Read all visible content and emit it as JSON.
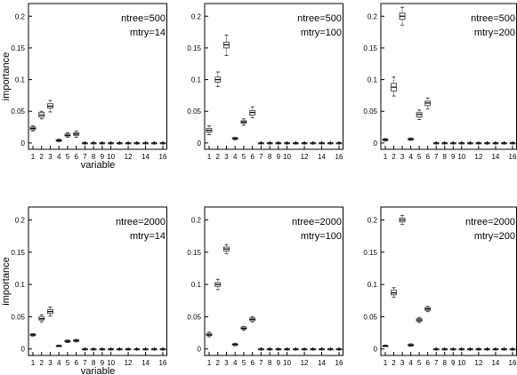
{
  "chart_data": [
    {
      "type": "boxplot",
      "annotations": [
        "ntree=500",
        "mtry=14"
      ],
      "ylabel": "importance",
      "xlabel": "variable",
      "ylim": [
        -0.01,
        0.22
      ],
      "yticks": [
        "0",
        "0.05",
        "0.1",
        "0.15",
        "0.2"
      ],
      "ytick_values": [
        0,
        0.05,
        0.1,
        0.15,
        0.2
      ],
      "xtick_labels": [
        "1",
        "2",
        "3",
        "4",
        "5",
        "6",
        "7",
        "8",
        "9",
        "10",
        "12",
        "14",
        "16"
      ],
      "xtick_values": [
        1,
        2,
        3,
        4,
        5,
        6,
        7,
        8,
        9,
        10,
        12,
        14,
        16
      ],
      "categories": [
        1,
        2,
        3,
        4,
        5,
        6,
        7,
        8,
        9,
        10,
        11,
        12,
        13,
        14,
        15,
        16
      ],
      "boxes": [
        {
          "median": 0.023,
          "q1": 0.021,
          "q3": 0.025,
          "wlo": 0.019,
          "whi": 0.027
        },
        {
          "median": 0.044,
          "q1": 0.041,
          "q3": 0.048,
          "wlo": 0.038,
          "whi": 0.05
        },
        {
          "median": 0.058,
          "q1": 0.055,
          "q3": 0.062,
          "wlo": 0.049,
          "whi": 0.067
        },
        {
          "median": 0.004,
          "q1": 0.003,
          "q3": 0.005,
          "wlo": 0.002,
          "whi": 0.006
        },
        {
          "median": 0.012,
          "q1": 0.011,
          "q3": 0.014,
          "wlo": 0.009,
          "whi": 0.016
        },
        {
          "median": 0.014,
          "q1": 0.012,
          "q3": 0.016,
          "wlo": 0.009,
          "whi": 0.019
        },
        {
          "median": 0,
          "q1": 0,
          "q3": 0,
          "wlo": 0,
          "whi": 0
        },
        {
          "median": 0,
          "q1": 0,
          "q3": 0,
          "wlo": 0,
          "whi": 0
        },
        {
          "median": 0,
          "q1": 0,
          "q3": 0,
          "wlo": 0,
          "whi": 0
        },
        {
          "median": 0,
          "q1": 0,
          "q3": 0,
          "wlo": 0,
          "whi": 0
        },
        {
          "median": 0,
          "q1": 0,
          "q3": 0,
          "wlo": 0,
          "whi": 0
        },
        {
          "median": 0,
          "q1": 0,
          "q3": 0,
          "wlo": 0,
          "whi": 0
        },
        {
          "median": 0,
          "q1": 0,
          "q3": 0,
          "wlo": 0,
          "whi": 0
        },
        {
          "median": 0,
          "q1": 0,
          "q3": 0,
          "wlo": 0,
          "whi": 0
        },
        {
          "median": 0,
          "q1": 0,
          "q3": 0,
          "wlo": 0,
          "whi": 0
        },
        {
          "median": 0,
          "q1": 0,
          "q3": 0,
          "wlo": 0,
          "whi": 0
        }
      ]
    },
    {
      "type": "boxplot",
      "annotations": [
        "ntree=500",
        "mtry=100"
      ],
      "ylabel": "",
      "xlabel": "",
      "ylim": [
        -0.01,
        0.22
      ],
      "yticks": [
        "0",
        "0.05",
        "0.1",
        "0.15",
        "0.2"
      ],
      "ytick_values": [
        0,
        0.05,
        0.1,
        0.15,
        0.2
      ],
      "xtick_labels": [
        "1",
        "2",
        "3",
        "4",
        "5",
        "6",
        "7",
        "8",
        "9",
        "10",
        "12",
        "14",
        "16"
      ],
      "xtick_values": [
        1,
        2,
        3,
        4,
        5,
        6,
        7,
        8,
        9,
        10,
        12,
        14,
        16
      ],
      "categories": [
        1,
        2,
        3,
        4,
        5,
        6,
        7,
        8,
        9,
        10,
        11,
        12,
        13,
        14,
        15,
        16
      ],
      "boxes": [
        {
          "median": 0.02,
          "q1": 0.017,
          "q3": 0.023,
          "wlo": 0.013,
          "whi": 0.027
        },
        {
          "median": 0.1,
          "q1": 0.096,
          "q3": 0.104,
          "wlo": 0.089,
          "whi": 0.112
        },
        {
          "median": 0.155,
          "q1": 0.15,
          "q3": 0.159,
          "wlo": 0.138,
          "whi": 0.17
        },
        {
          "median": 0.007,
          "q1": 0.006,
          "q3": 0.008,
          "wlo": 0.005,
          "whi": 0.009
        },
        {
          "median": 0.033,
          "q1": 0.031,
          "q3": 0.035,
          "wlo": 0.028,
          "whi": 0.038
        },
        {
          "median": 0.048,
          "q1": 0.044,
          "q3": 0.051,
          "wlo": 0.04,
          "whi": 0.057
        },
        {
          "median": 0,
          "q1": 0,
          "q3": 0,
          "wlo": 0,
          "whi": 0
        },
        {
          "median": 0,
          "q1": 0,
          "q3": 0,
          "wlo": 0,
          "whi": 0
        },
        {
          "median": 0,
          "q1": 0,
          "q3": 0,
          "wlo": 0,
          "whi": 0
        },
        {
          "median": 0,
          "q1": 0,
          "q3": 0,
          "wlo": 0,
          "whi": 0
        },
        {
          "median": 0,
          "q1": 0,
          "q3": 0,
          "wlo": 0,
          "whi": 0
        },
        {
          "median": 0,
          "q1": 0,
          "q3": 0,
          "wlo": 0,
          "whi": 0
        },
        {
          "median": 0,
          "q1": 0,
          "q3": 0,
          "wlo": 0,
          "whi": 0
        },
        {
          "median": 0,
          "q1": 0,
          "q3": 0,
          "wlo": 0,
          "whi": 0
        },
        {
          "median": 0,
          "q1": 0,
          "q3": 0,
          "wlo": 0,
          "whi": 0
        },
        {
          "median": 0,
          "q1": 0,
          "q3": 0,
          "wlo": 0,
          "whi": 0
        }
      ]
    },
    {
      "type": "boxplot",
      "annotations": [
        "ntree=500",
        "mtry=200"
      ],
      "ylabel": "",
      "xlabel": "",
      "ylim": [
        -0.01,
        0.22
      ],
      "yticks": [
        "0",
        "0.05",
        "0.1",
        "0.15",
        "0.2"
      ],
      "ytick_values": [
        0,
        0.05,
        0.1,
        0.15,
        0.2
      ],
      "xtick_labels": [
        "1",
        "2",
        "3",
        "4",
        "5",
        "6",
        "7",
        "8",
        "9",
        "10",
        "12",
        "14",
        "16"
      ],
      "xtick_values": [
        1,
        2,
        3,
        4,
        5,
        6,
        7,
        8,
        9,
        10,
        12,
        14,
        16
      ],
      "categories": [
        1,
        2,
        3,
        4,
        5,
        6,
        7,
        8,
        9,
        10,
        11,
        12,
        13,
        14,
        15,
        16
      ],
      "boxes": [
        {
          "median": 0.005,
          "q1": 0.004,
          "q3": 0.006,
          "wlo": 0.003,
          "whi": 0.007
        },
        {
          "median": 0.088,
          "q1": 0.082,
          "q3": 0.094,
          "wlo": 0.074,
          "whi": 0.104
        },
        {
          "median": 0.2,
          "q1": 0.195,
          "q3": 0.205,
          "wlo": 0.186,
          "whi": 0.214
        },
        {
          "median": 0.006,
          "q1": 0.005,
          "q3": 0.007,
          "wlo": 0.004,
          "whi": 0.008
        },
        {
          "median": 0.045,
          "q1": 0.041,
          "q3": 0.048,
          "wlo": 0.037,
          "whi": 0.052
        },
        {
          "median": 0.063,
          "q1": 0.059,
          "q3": 0.066,
          "wlo": 0.054,
          "whi": 0.071
        },
        {
          "median": 0,
          "q1": 0,
          "q3": 0,
          "wlo": 0,
          "whi": 0
        },
        {
          "median": 0,
          "q1": 0,
          "q3": 0,
          "wlo": 0,
          "whi": 0
        },
        {
          "median": 0,
          "q1": 0,
          "q3": 0,
          "wlo": 0,
          "whi": 0
        },
        {
          "median": 0,
          "q1": 0,
          "q3": 0,
          "wlo": 0,
          "whi": 0
        },
        {
          "median": 0,
          "q1": 0,
          "q3": 0,
          "wlo": 0,
          "whi": 0
        },
        {
          "median": 0,
          "q1": 0,
          "q3": 0,
          "wlo": 0,
          "whi": 0
        },
        {
          "median": 0,
          "q1": 0,
          "q3": 0,
          "wlo": 0,
          "whi": 0
        },
        {
          "median": 0,
          "q1": 0,
          "q3": 0,
          "wlo": 0,
          "whi": 0
        },
        {
          "median": 0,
          "q1": 0,
          "q3": 0,
          "wlo": 0,
          "whi": 0
        },
        {
          "median": 0,
          "q1": 0,
          "q3": 0,
          "wlo": 0,
          "whi": 0
        }
      ]
    },
    {
      "type": "boxplot",
      "annotations": [
        "ntree=2000",
        "mtry=14"
      ],
      "ylabel": "importance",
      "xlabel": "variable",
      "ylim": [
        -0.01,
        0.22
      ],
      "yticks": [
        "0",
        "0.05",
        "0.1",
        "0.15",
        "0.2"
      ],
      "ytick_values": [
        0,
        0.05,
        0.1,
        0.15,
        0.2
      ],
      "xtick_labels": [
        "1",
        "2",
        "3",
        "4",
        "5",
        "6",
        "7",
        "8",
        "9",
        "10",
        "12",
        "14",
        "16"
      ],
      "xtick_values": [
        1,
        2,
        3,
        4,
        5,
        6,
        7,
        8,
        9,
        10,
        12,
        14,
        16
      ],
      "categories": [
        1,
        2,
        3,
        4,
        5,
        6,
        7,
        8,
        9,
        10,
        11,
        12,
        13,
        14,
        15,
        16
      ],
      "boxes": [
        {
          "median": 0.022,
          "q1": 0.021,
          "q3": 0.023,
          "wlo": 0.02,
          "whi": 0.024
        },
        {
          "median": 0.047,
          "q1": 0.045,
          "q3": 0.05,
          "wlo": 0.042,
          "whi": 0.053
        },
        {
          "median": 0.058,
          "q1": 0.055,
          "q3": 0.061,
          "wlo": 0.051,
          "whi": 0.065
        },
        {
          "median": 0.005,
          "q1": 0.004,
          "q3": 0.005,
          "wlo": 0.004,
          "whi": 0.006
        },
        {
          "median": 0.012,
          "q1": 0.011,
          "q3": 0.013,
          "wlo": 0.01,
          "whi": 0.014
        },
        {
          "median": 0.013,
          "q1": 0.012,
          "q3": 0.014,
          "wlo": 0.011,
          "whi": 0.015
        },
        {
          "median": 0,
          "q1": 0,
          "q3": 0,
          "wlo": 0,
          "whi": 0
        },
        {
          "median": 0,
          "q1": 0,
          "q3": 0,
          "wlo": 0,
          "whi": 0
        },
        {
          "median": 0,
          "q1": 0,
          "q3": 0,
          "wlo": 0,
          "whi": 0
        },
        {
          "median": 0,
          "q1": 0,
          "q3": 0,
          "wlo": 0,
          "whi": 0
        },
        {
          "median": 0,
          "q1": 0,
          "q3": 0,
          "wlo": 0,
          "whi": 0
        },
        {
          "median": 0,
          "q1": 0,
          "q3": 0,
          "wlo": 0,
          "whi": 0
        },
        {
          "median": 0,
          "q1": 0,
          "q3": 0,
          "wlo": 0,
          "whi": 0
        },
        {
          "median": 0,
          "q1": 0,
          "q3": 0,
          "wlo": 0,
          "whi": 0
        },
        {
          "median": 0,
          "q1": 0,
          "q3": 0,
          "wlo": 0,
          "whi": 0
        },
        {
          "median": 0,
          "q1": 0,
          "q3": 0,
          "wlo": 0,
          "whi": 0
        }
      ]
    },
    {
      "type": "boxplot",
      "annotations": [
        "ntree=2000",
        "mtry=100"
      ],
      "ylabel": "",
      "xlabel": "",
      "ylim": [
        -0.01,
        0.22
      ],
      "yticks": [
        "0",
        "0.05",
        "0.1",
        "0.15",
        "0.2"
      ],
      "ytick_values": [
        0,
        0.05,
        0.1,
        0.15,
        0.2
      ],
      "xtick_labels": [
        "1",
        "2",
        "3",
        "4",
        "5",
        "6",
        "7",
        "8",
        "9",
        "10",
        "12",
        "14",
        "16"
      ],
      "xtick_values": [
        1,
        2,
        3,
        4,
        5,
        6,
        7,
        8,
        9,
        10,
        12,
        14,
        16
      ],
      "categories": [
        1,
        2,
        3,
        4,
        5,
        6,
        7,
        8,
        9,
        10,
        11,
        12,
        13,
        14,
        15,
        16
      ],
      "boxes": [
        {
          "median": 0.022,
          "q1": 0.021,
          "q3": 0.024,
          "wlo": 0.019,
          "whi": 0.026
        },
        {
          "median": 0.1,
          "q1": 0.097,
          "q3": 0.103,
          "wlo": 0.092,
          "whi": 0.108
        },
        {
          "median": 0.155,
          "q1": 0.152,
          "q3": 0.158,
          "wlo": 0.148,
          "whi": 0.162
        },
        {
          "median": 0.007,
          "q1": 0.006,
          "q3": 0.008,
          "wlo": 0.005,
          "whi": 0.009
        },
        {
          "median": 0.032,
          "q1": 0.031,
          "q3": 0.034,
          "wlo": 0.029,
          "whi": 0.035
        },
        {
          "median": 0.046,
          "q1": 0.044,
          "q3": 0.048,
          "wlo": 0.042,
          "whi": 0.05
        },
        {
          "median": 0,
          "q1": 0,
          "q3": 0,
          "wlo": 0,
          "whi": 0
        },
        {
          "median": 0,
          "q1": 0,
          "q3": 0,
          "wlo": 0,
          "whi": 0
        },
        {
          "median": 0,
          "q1": 0,
          "q3": 0,
          "wlo": 0,
          "whi": 0
        },
        {
          "median": 0,
          "q1": 0,
          "q3": 0,
          "wlo": 0,
          "whi": 0
        },
        {
          "median": 0,
          "q1": 0,
          "q3": 0,
          "wlo": 0,
          "whi": 0
        },
        {
          "median": 0,
          "q1": 0,
          "q3": 0,
          "wlo": 0,
          "whi": 0
        },
        {
          "median": 0,
          "q1": 0,
          "q3": 0,
          "wlo": 0,
          "whi": 0
        },
        {
          "median": 0,
          "q1": 0,
          "q3": 0,
          "wlo": 0,
          "whi": 0
        },
        {
          "median": 0,
          "q1": 0,
          "q3": 0,
          "wlo": 0,
          "whi": 0
        },
        {
          "median": 0,
          "q1": 0,
          "q3": 0,
          "wlo": 0,
          "whi": 0
        }
      ]
    },
    {
      "type": "boxplot",
      "annotations": [
        "ntree=2000",
        "mtry=200"
      ],
      "ylabel": "",
      "xlabel": "",
      "ylim": [
        -0.01,
        0.22
      ],
      "yticks": [
        "0",
        "0.05",
        "0.1",
        "0.15",
        "0.2"
      ],
      "ytick_values": [
        0,
        0.05,
        0.1,
        0.15,
        0.2
      ],
      "xtick_labels": [
        "1",
        "2",
        "3",
        "4",
        "5",
        "6",
        "7",
        "8",
        "9",
        "10",
        "12",
        "14",
        "16"
      ],
      "xtick_values": [
        1,
        2,
        3,
        4,
        5,
        6,
        7,
        8,
        9,
        10,
        12,
        14,
        16
      ],
      "categories": [
        1,
        2,
        3,
        4,
        5,
        6,
        7,
        8,
        9,
        10,
        11,
        12,
        13,
        14,
        15,
        16
      ],
      "boxes": [
        {
          "median": 0.005,
          "q1": 0.004,
          "q3": 0.005,
          "wlo": 0.004,
          "whi": 0.006
        },
        {
          "median": 0.087,
          "q1": 0.084,
          "q3": 0.091,
          "wlo": 0.08,
          "whi": 0.095
        },
        {
          "median": 0.2,
          "q1": 0.197,
          "q3": 0.203,
          "wlo": 0.193,
          "whi": 0.207
        },
        {
          "median": 0.006,
          "q1": 0.005,
          "q3": 0.007,
          "wlo": 0.004,
          "whi": 0.008
        },
        {
          "median": 0.045,
          "q1": 0.043,
          "q3": 0.047,
          "wlo": 0.041,
          "whi": 0.049
        },
        {
          "median": 0.062,
          "q1": 0.06,
          "q3": 0.064,
          "wlo": 0.058,
          "whi": 0.066
        },
        {
          "median": 0,
          "q1": 0,
          "q3": 0,
          "wlo": 0,
          "whi": 0
        },
        {
          "median": 0,
          "q1": 0,
          "q3": 0,
          "wlo": 0,
          "whi": 0
        },
        {
          "median": 0,
          "q1": 0,
          "q3": 0,
          "wlo": 0,
          "whi": 0
        },
        {
          "median": 0,
          "q1": 0,
          "q3": 0,
          "wlo": 0,
          "whi": 0
        },
        {
          "median": 0,
          "q1": 0,
          "q3": 0,
          "wlo": 0,
          "whi": 0
        },
        {
          "median": 0,
          "q1": 0,
          "q3": 0,
          "wlo": 0,
          "whi": 0
        },
        {
          "median": 0,
          "q1": 0,
          "q3": 0,
          "wlo": 0,
          "whi": 0
        },
        {
          "median": 0,
          "q1": 0,
          "q3": 0,
          "wlo": 0,
          "whi": 0
        },
        {
          "median": 0,
          "q1": 0,
          "q3": 0,
          "wlo": 0,
          "whi": 0
        },
        {
          "median": 0,
          "q1": 0,
          "q3": 0,
          "wlo": 0,
          "whi": 0
        }
      ]
    }
  ]
}
